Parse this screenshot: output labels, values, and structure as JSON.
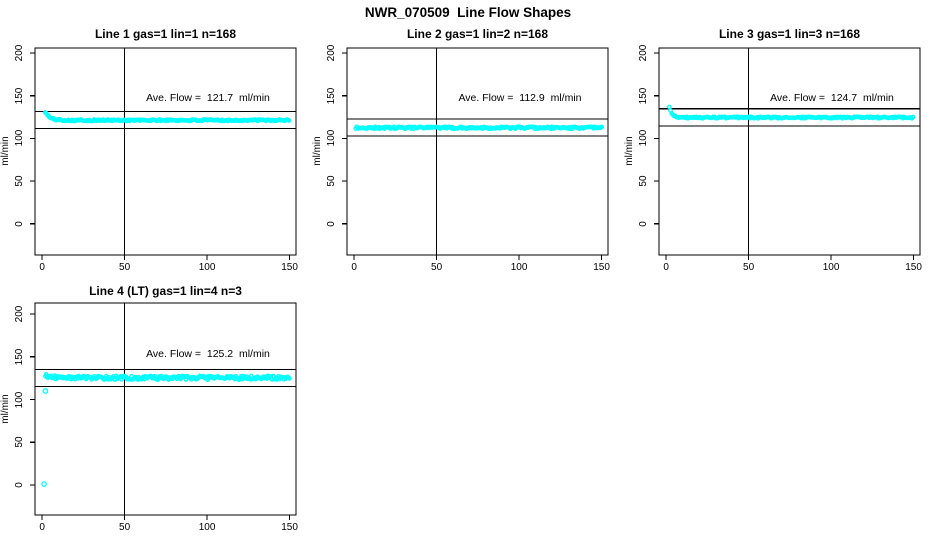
{
  "page_title": "NWR_070509  Line Flow Shapes",
  "marker_color": "#00ffff",
  "axis_color": "#000000",
  "chart_data": [
    {
      "type": "scatter",
      "title": "Line 1 gas=1 lin=1 n=168",
      "annotation": "Ave. Flow =  121.7  ml/min",
      "ave_flow_ml_min": 121.7,
      "n_points_label": 168,
      "ylabel": "ml/min",
      "xticks": [
        0,
        50,
        100,
        150
      ],
      "yticks": [
        0,
        50,
        100,
        150,
        200
      ],
      "xlim": [
        -4.3,
        153.9
      ],
      "ylim": [
        -36.7,
        205.9
      ],
      "vline_x": 50,
      "hlines": [
        131.7,
        111.7
      ],
      "annotation_xy": [
        100,
        152
      ],
      "series": {
        "x_start": 2,
        "x_end": 150,
        "x_step": 0.7,
        "start_y": 131,
        "settle_y": 121.2,
        "decay_tau": 2.6,
        "noise": 0.9,
        "seed": 101
      },
      "outliers": []
    },
    {
      "type": "scatter",
      "title": "Line 2 gas=1 lin=2 n=168",
      "annotation": "Ave. Flow =  112.9  ml/min",
      "ave_flow_ml_min": 112.9,
      "n_points_label": 168,
      "ylabel": "ml/min",
      "xticks": [
        0,
        50,
        100,
        150
      ],
      "yticks": [
        0,
        50,
        100,
        150,
        200
      ],
      "xlim": [
        -4.3,
        153.9
      ],
      "ylim": [
        -36.7,
        205.9
      ],
      "vline_x": 50,
      "hlines": [
        122.9,
        102.9
      ],
      "annotation_xy": [
        100,
        152
      ],
      "series": {
        "x_start": 1,
        "x_end": 150.5,
        "x_step": 0.7,
        "start_y": 112.4,
        "settle_y": 112.4,
        "decay_tau": 1,
        "noise": 1.2,
        "seed": 202
      },
      "outliers": []
    },
    {
      "type": "scatter",
      "title": "Line 3 gas=1 lin=3 n=168",
      "annotation": "Ave. Flow =  124.7  ml/min",
      "ave_flow_ml_min": 124.7,
      "n_points_label": 168,
      "ylabel": "ml/min",
      "xticks": [
        0,
        50,
        100,
        150
      ],
      "yticks": [
        0,
        50,
        100,
        150,
        200
      ],
      "xlim": [
        -4.3,
        153.9
      ],
      "ylim": [
        -36.7,
        205.9
      ],
      "vline_x": 50,
      "hlines": [
        134.7,
        114.7
      ],
      "annotation_xy": [
        100,
        152
      ],
      "series": {
        "x_start": 2,
        "x_end": 150,
        "x_step": 0.7,
        "start_y": 136,
        "settle_y": 124.4,
        "decay_tau": 1.7,
        "noise": 0.9,
        "seed": 303
      },
      "outliers": []
    },
    {
      "type": "scatter",
      "title": "Line 4 (LT) gas=1 lin=4 n=3",
      "annotation": "Ave. Flow =  125.2  ml/min",
      "ave_flow_ml_min": 125.2,
      "n_points_label": 3,
      "ylabel": "ml/min",
      "xticks": [
        0,
        50,
        100,
        150
      ],
      "yticks": [
        0,
        50,
        100,
        150,
        200
      ],
      "xlim": [
        -4.3,
        153.9
      ],
      "ylim": [
        -35.1,
        212.9
      ],
      "vline_x": 50,
      "hlines": [
        135.2,
        115.2
      ],
      "annotation_xy": [
        100,
        152
      ],
      "series": {
        "x_start": 2,
        "x_end": 150,
        "x_step": 0.55,
        "start_y": 128,
        "settle_y": 125.4,
        "decay_tau": 4,
        "noise": 2.1,
        "seed": 404
      },
      "outliers": [
        [
          2,
          110
        ],
        [
          1.2,
          1
        ]
      ]
    }
  ]
}
